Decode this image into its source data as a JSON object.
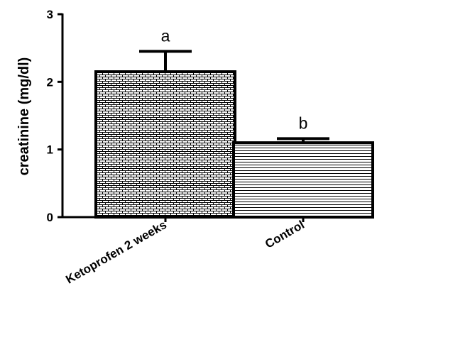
{
  "chart_data": {
    "type": "bar",
    "categories": [
      "Ketoprofen 2 weeks",
      "Control"
    ],
    "values": [
      2.15,
      1.1
    ],
    "error_upper": [
      2.45,
      1.16
    ],
    "significance_labels": [
      "a",
      "b"
    ],
    "bar_patterns": [
      "brick",
      "horizontal-lines"
    ],
    "title": "",
    "xlabel": "",
    "ylabel": "creatinine (mg/dl)",
    "ylim": [
      0,
      3
    ],
    "yticks": [
      0,
      1,
      2,
      3
    ],
    "grid": false,
    "legend": "none"
  }
}
